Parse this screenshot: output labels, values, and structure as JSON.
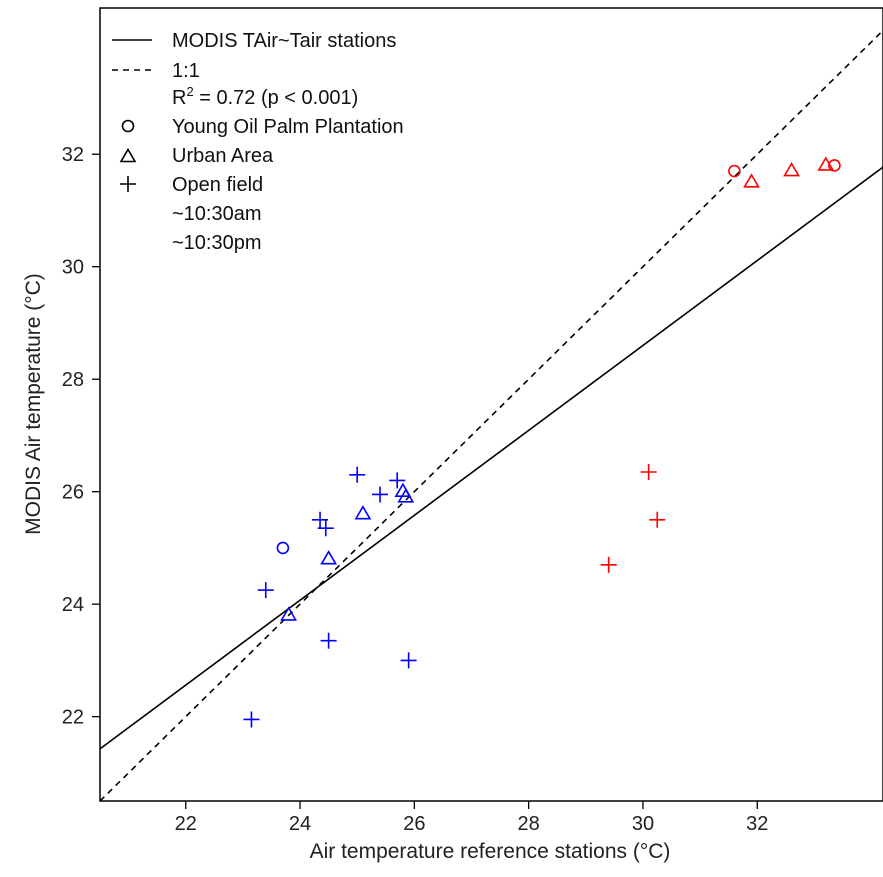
{
  "chart_data": {
    "type": "scatter",
    "xlabel": "Air temperature reference stations (°C)",
    "ylabel": "MODIS Air temperature (°C)",
    "xlim": [
      20.5,
      34.2
    ],
    "ylim": [
      20.5,
      34.6
    ],
    "xticks": [
      22,
      24,
      26,
      28,
      30,
      32
    ],
    "yticks": [
      22,
      24,
      26,
      28,
      30,
      32
    ],
    "grid": false,
    "legend_position": "top-left",
    "legend": {
      "regression_label": "MODIS TAir~Tair stations",
      "identity_label": "1:1",
      "r2_prefix": "R",
      "r2_sup": "2",
      "r2_rest": " = 0.72 (p < 0.001)",
      "markers": [
        {
          "marker": "circle",
          "label": "Young Oil Palm Plantation"
        },
        {
          "marker": "triangle",
          "label": "Urban Area"
        },
        {
          "marker": "plus",
          "label": "Open field"
        }
      ],
      "times": [
        {
          "label": "~10:30am",
          "color": "#ff0000"
        },
        {
          "label": "~10:30pm",
          "color": "#0000ff"
        }
      ]
    },
    "colors": {
      "am": "#ff0000",
      "pm": "#0000ff",
      "lines": "#000000"
    },
    "regression_line": {
      "slope": 0.755,
      "intercept": 5.95
    },
    "identity_line": {
      "slope": 1,
      "intercept": 0
    },
    "series": [
      {
        "time": "am",
        "marker": "circle",
        "points": [
          [
            31.6,
            31.7
          ],
          [
            33.35,
            31.8
          ]
        ]
      },
      {
        "time": "am",
        "marker": "triangle",
        "points": [
          [
            31.9,
            31.5
          ],
          [
            32.6,
            31.7
          ],
          [
            33.2,
            31.8
          ]
        ]
      },
      {
        "time": "am",
        "marker": "plus",
        "points": [
          [
            29.4,
            24.7
          ],
          [
            30.1,
            26.35
          ],
          [
            30.25,
            25.5
          ]
        ]
      },
      {
        "time": "pm",
        "marker": "circle",
        "points": [
          [
            23.7,
            25.0
          ]
        ]
      },
      {
        "time": "pm",
        "marker": "triangle",
        "points": [
          [
            23.8,
            23.8
          ],
          [
            24.5,
            24.8
          ],
          [
            25.1,
            25.6
          ],
          [
            25.8,
            26.0
          ],
          [
            25.85,
            25.9
          ]
        ]
      },
      {
        "time": "pm",
        "marker": "plus",
        "points": [
          [
            23.15,
            21.95
          ],
          [
            23.4,
            24.25
          ],
          [
            24.35,
            25.5
          ],
          [
            24.45,
            25.35
          ],
          [
            24.5,
            23.35
          ],
          [
            25.0,
            26.3
          ],
          [
            25.4,
            25.95
          ],
          [
            25.7,
            26.2
          ],
          [
            25.9,
            23.0
          ]
        ]
      }
    ]
  }
}
